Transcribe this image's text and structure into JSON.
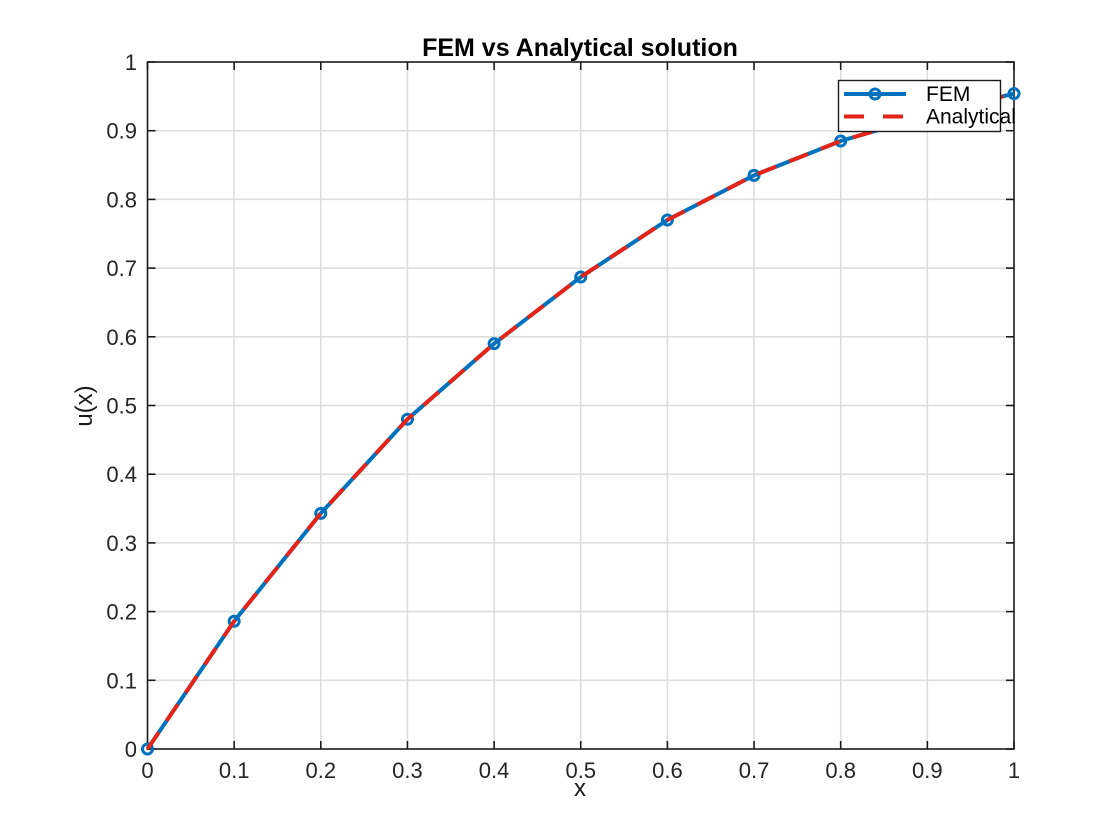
{
  "chart_data": {
    "type": "line",
    "title": "FEM vs Analytical solution",
    "xlabel": "x",
    "ylabel": "u(x)",
    "xlim": [
      0,
      1
    ],
    "ylim": [
      0,
      1
    ],
    "grid": true,
    "legend_position": "top-right",
    "x_ticks": [
      0,
      0.1,
      0.2,
      0.3,
      0.4,
      0.5,
      0.6,
      0.7,
      0.8,
      0.9,
      1
    ],
    "x_tick_labels": [
      "0",
      "0.1",
      "0.2",
      "0.3",
      "0.4",
      "0.5",
      "0.6",
      "0.7",
      "0.8",
      "0.9",
      "1"
    ],
    "y_ticks": [
      0,
      0.1,
      0.2,
      0.3,
      0.4,
      0.5,
      0.6,
      0.7,
      0.8,
      0.9,
      1
    ],
    "y_tick_labels": [
      "0",
      "0.1",
      "0.2",
      "0.3",
      "0.4",
      "0.5",
      "0.6",
      "0.7",
      "0.8",
      "0.9",
      "1"
    ],
    "x": [
      0,
      0.1,
      0.2,
      0.3,
      0.4,
      0.5,
      0.6,
      0.7,
      0.8,
      0.9,
      1.0
    ],
    "series": [
      {
        "name": "FEM",
        "color": "#0072bd",
        "line_style": "solid",
        "marker": "circle",
        "values": [
          0,
          0.186,
          0.343,
          0.48,
          0.59,
          0.687,
          0.77,
          0.835,
          0.885,
          0.922,
          0.954
        ]
      },
      {
        "name": "Analytical",
        "color": "#e42419",
        "line_style": "dashed",
        "marker": "none",
        "values": [
          0,
          0.186,
          0.343,
          0.48,
          0.59,
          0.687,
          0.77,
          0.835,
          0.885,
          0.922,
          0.954
        ]
      }
    ]
  }
}
